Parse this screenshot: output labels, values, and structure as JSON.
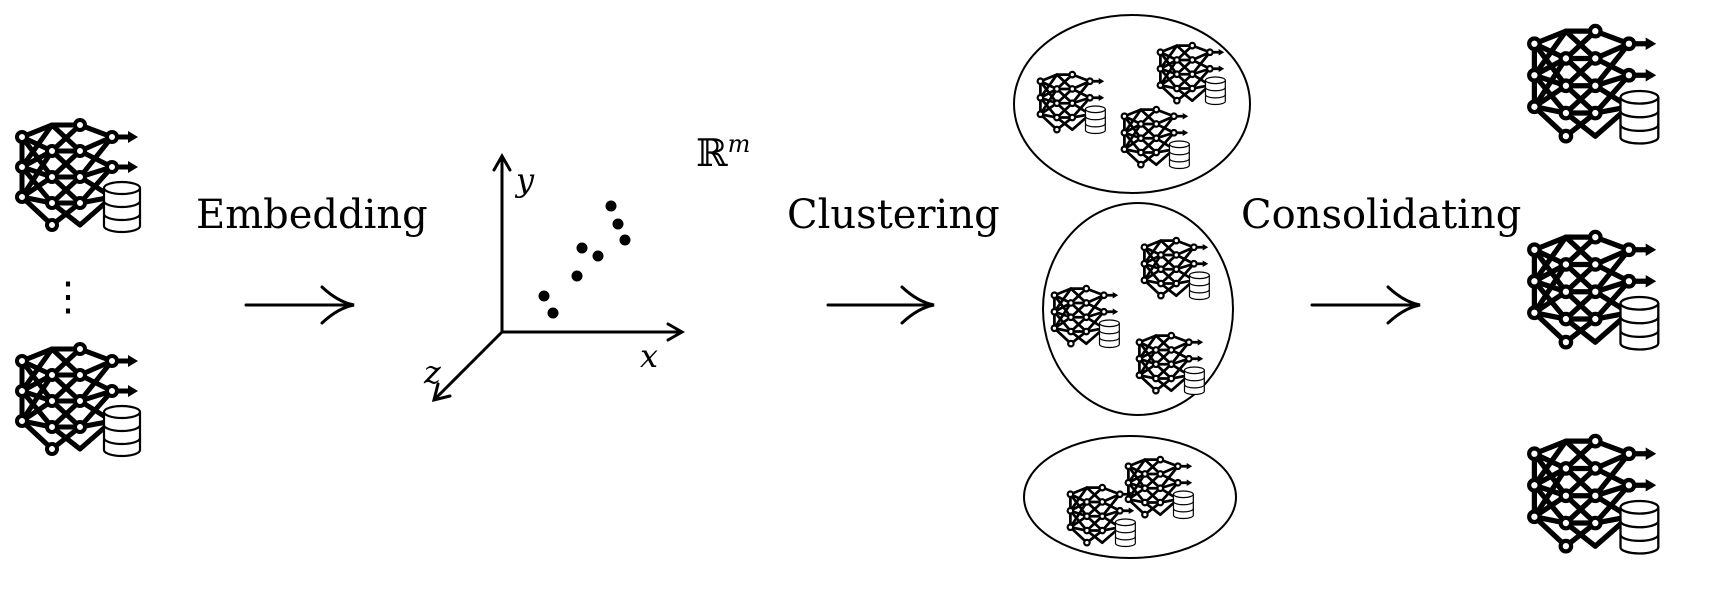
{
  "stages": {
    "embedding_label": "Embedding",
    "clustering_label": "Clustering",
    "consolidating_label": "Consolidating"
  },
  "embedding_space": {
    "space_base": "ℝ",
    "space_exponent": "m",
    "axis_x": "x",
    "axis_y": "y",
    "axis_z": "z"
  },
  "input_models": {
    "ellipsis": "⋮",
    "icon": "neural-network-with-database-icon"
  },
  "colors": {
    "ink": "#000000",
    "background": "#ffffff"
  }
}
